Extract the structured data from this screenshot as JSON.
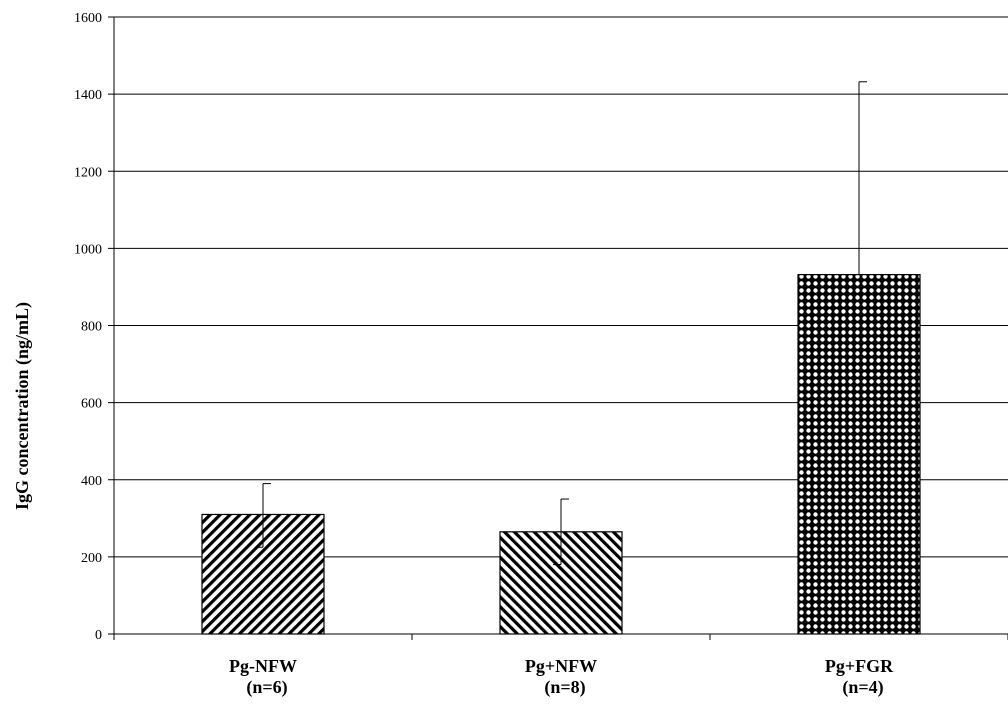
{
  "chart_data": {
    "type": "bar",
    "title": "",
    "xlabel": "",
    "ylabel": "IgG concentration (ng/mL)",
    "ylim": [
      0,
      1600
    ],
    "yticks": [
      "0",
      "200",
      "400",
      "600",
      "800",
      "1000",
      "1200",
      "1400",
      "1600"
    ],
    "categories": [
      {
        "name": "Pg-NFW",
        "n": "(n=6)"
      },
      {
        "name": "Pg+NFW",
        "n": "(n=8)"
      },
      {
        "name": "Pg+FGR",
        "n": "(n=4)"
      }
    ],
    "values": [
      310,
      265,
      932
    ],
    "error_upper": [
      80,
      85,
      500
    ],
    "error_lower": [
      85,
      85,
      0
    ],
    "fill_patterns": [
      "diagonal-up-stripes",
      "diagonal-down-stripes",
      "checkerboard"
    ],
    "grid": true,
    "legend": "none"
  }
}
